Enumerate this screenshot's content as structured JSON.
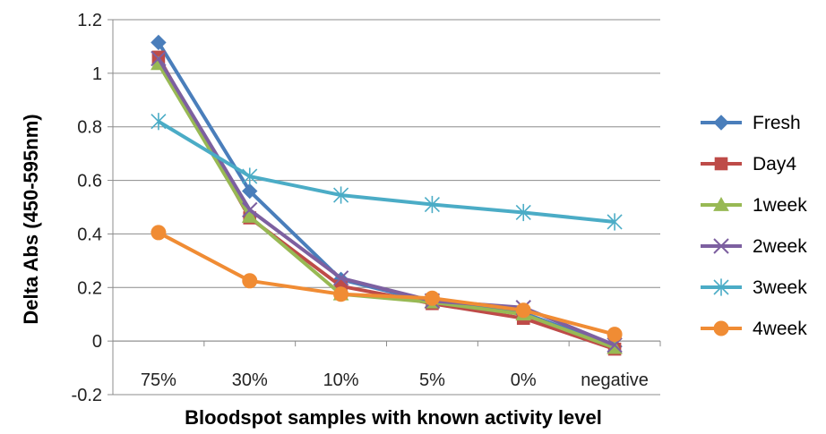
{
  "chart_data": {
    "type": "line",
    "title": "",
    "xlabel": "Bloodspot samples  with known activity level",
    "ylabel": "Delta Abs (450-595nm)",
    "categories": [
      "75%",
      "30%",
      "10%",
      "5%",
      "0%",
      "negative"
    ],
    "ylim": [
      -0.2,
      1.2
    ],
    "yticks": [
      "-0.2",
      "0",
      "0.2",
      "0.4",
      "0.6",
      "0.8",
      "1",
      "1.2"
    ],
    "grid": "horizontal",
    "legend_position": "right",
    "series": [
      {
        "name": "Fresh",
        "color": "#4a7ebb",
        "marker": "diamond",
        "values": [
          1.115,
          0.56,
          0.23,
          0.145,
          0.105,
          -0.02
        ]
      },
      {
        "name": "Day4",
        "color": "#be4b48",
        "marker": "square",
        "values": [
          1.06,
          0.46,
          0.205,
          0.14,
          0.085,
          -0.03
        ]
      },
      {
        "name": "1week",
        "color": "#98b954",
        "marker": "triangle",
        "values": [
          1.035,
          0.465,
          0.175,
          0.145,
          0.1,
          -0.025
        ]
      },
      {
        "name": "2week",
        "color": "#7d60a0",
        "marker": "x",
        "values": [
          1.055,
          0.49,
          0.235,
          0.15,
          0.125,
          -0.015
        ]
      },
      {
        "name": "3week",
        "color": "#4bacc6",
        "marker": "star",
        "values": [
          0.82,
          0.615,
          0.545,
          0.51,
          0.48,
          0.445
        ]
      },
      {
        "name": "4week",
        "color": "#f08c34",
        "marker": "circle",
        "values": [
          0.405,
          0.225,
          0.175,
          0.16,
          0.115,
          0.025
        ]
      }
    ]
  }
}
